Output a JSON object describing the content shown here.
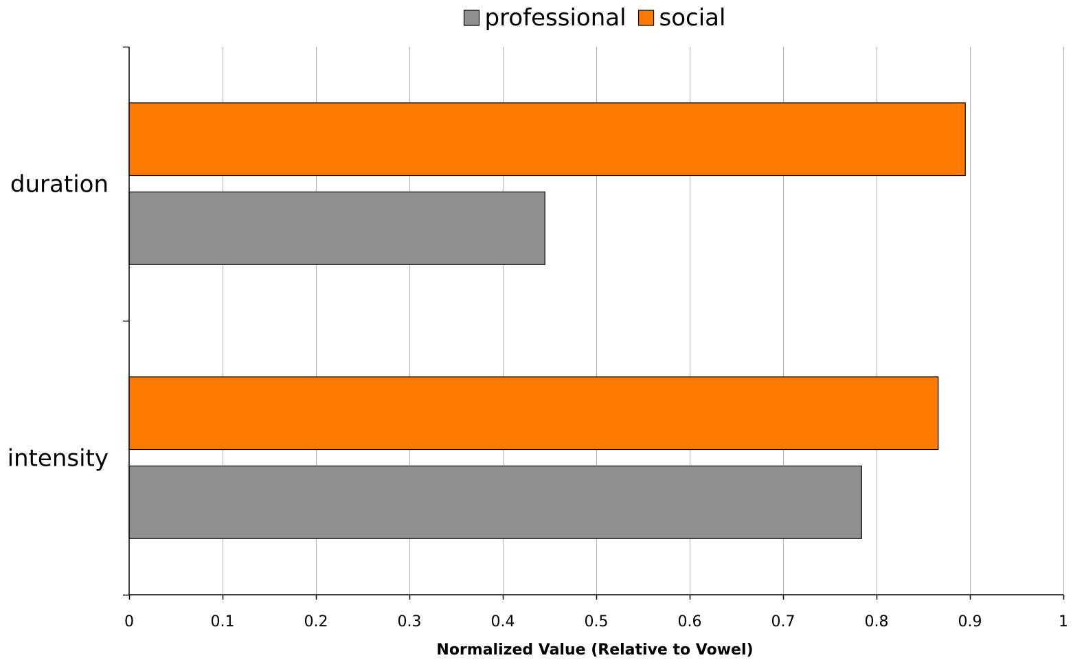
{
  "chart_data": {
    "type": "bar",
    "orientation": "horizontal",
    "categories": [
      "duration",
      "intensity"
    ],
    "series": [
      {
        "name": "professional",
        "color": "#8f8f8f",
        "values": [
          0.445,
          0.784
        ]
      },
      {
        "name": "social",
        "color": "#ff7b00",
        "values": [
          0.895,
          0.866
        ]
      }
    ],
    "xlabel": "Normalized Value (Relative to Vowel)",
    "ylabel": "",
    "xlim": [
      0,
      1
    ],
    "xticks": [
      0,
      0.1,
      0.2,
      0.3,
      0.4,
      0.5,
      0.6,
      0.7,
      0.8,
      0.9,
      1
    ],
    "xtick_labels": [
      "0",
      "0.1",
      "0.2",
      "0.3",
      "0.4",
      "0.5",
      "0.6",
      "0.7",
      "0.8",
      "0.9",
      "1"
    ],
    "grid": "vertical",
    "legend_position": "top-center"
  }
}
